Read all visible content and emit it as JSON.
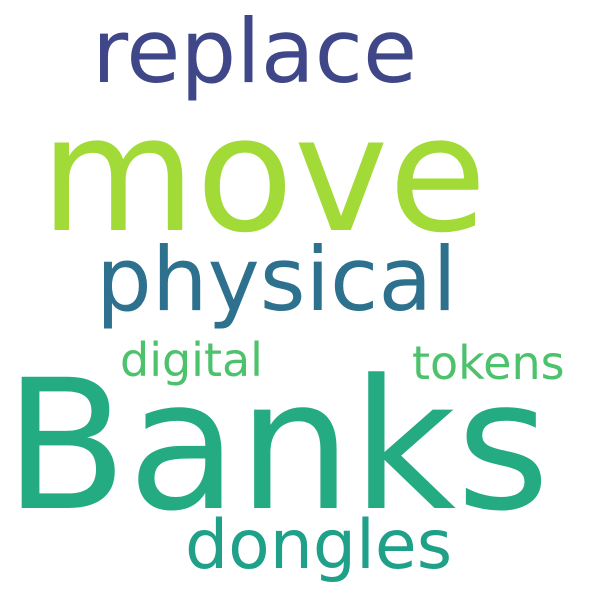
{
  "words": [
    {
      "text": "replace",
      "color": "#3f4788"
    },
    {
      "text": "move",
      "color": "#a2da37"
    },
    {
      "text": "physical",
      "color": "#2d718e"
    },
    {
      "text": "digital",
      "color": "#4cc26c"
    },
    {
      "text": "tokens",
      "color": "#4cc26c"
    },
    {
      "text": "Banks",
      "color": "#25ab82"
    },
    {
      "text": "dongles",
      "color": "#1fa088"
    }
  ]
}
